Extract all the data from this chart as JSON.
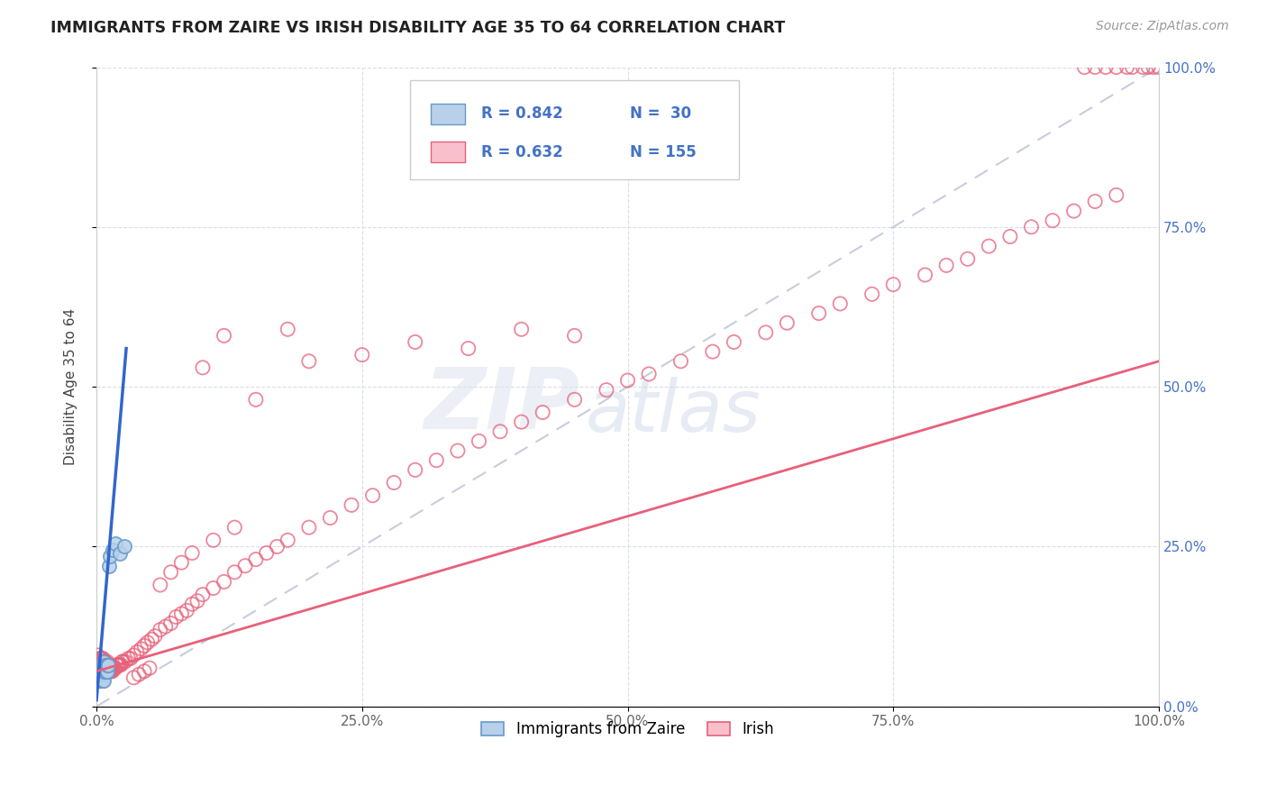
{
  "title": "IMMIGRANTS FROM ZAIRE VS IRISH DISABILITY AGE 35 TO 64 CORRELATION CHART",
  "source": "Source: ZipAtlas.com",
  "ylabel": "Disability Age 35 to 64",
  "xlim": [
    0,
    1.0
  ],
  "ylim": [
    0,
    1.0
  ],
  "x_tick_labels": [
    "0.0%",
    "25.0%",
    "50.0%",
    "75.0%",
    "100.0%"
  ],
  "x_tick_vals": [
    0.0,
    0.25,
    0.5,
    0.75,
    1.0
  ],
  "right_y_tick_labels": [
    "0.0%",
    "25.0%",
    "50.0%",
    "75.0%",
    "100.0%"
  ],
  "right_y_tick_vals": [
    0.0,
    0.25,
    0.5,
    0.75,
    1.0
  ],
  "blue_R": 0.842,
  "blue_N": 30,
  "pink_R": 0.632,
  "pink_N": 155,
  "blue_fill_color": "#b8d0ea",
  "pink_fill_color": "#f9c0cc",
  "blue_line_color": "#3366cc",
  "pink_line_color": "#e8607a",
  "blue_edge_color": "#6699cc",
  "pink_edge_color": "#e8607a",
  "diag_line_color": "#c0c8d8",
  "grid_color": "#d8dde8",
  "background_color": "#ffffff",
  "watermark_zip": "ZIP",
  "watermark_atlas": "atlas",
  "legend_label_blue": "Immigrants from Zaire",
  "legend_label_pink": "Irish",
  "blue_points_x": [
    0.002,
    0.003,
    0.003,
    0.004,
    0.004,
    0.004,
    0.005,
    0.005,
    0.005,
    0.006,
    0.006,
    0.006,
    0.006,
    0.007,
    0.007,
    0.007,
    0.007,
    0.008,
    0.008,
    0.009,
    0.009,
    0.01,
    0.01,
    0.011,
    0.012,
    0.013,
    0.015,
    0.018,
    0.022,
    0.026
  ],
  "blue_points_y": [
    0.04,
    0.05,
    0.06,
    0.04,
    0.05,
    0.06,
    0.04,
    0.055,
    0.065,
    0.04,
    0.05,
    0.06,
    0.065,
    0.04,
    0.055,
    0.065,
    0.07,
    0.055,
    0.065,
    0.055,
    0.065,
    0.055,
    0.065,
    0.065,
    0.22,
    0.235,
    0.245,
    0.255,
    0.24,
    0.25
  ],
  "pink_points_x": [
    0.001,
    0.001,
    0.002,
    0.002,
    0.003,
    0.003,
    0.003,
    0.004,
    0.004,
    0.004,
    0.004,
    0.005,
    0.005,
    0.005,
    0.005,
    0.005,
    0.006,
    0.006,
    0.006,
    0.006,
    0.006,
    0.007,
    0.007,
    0.007,
    0.007,
    0.008,
    0.008,
    0.008,
    0.008,
    0.009,
    0.009,
    0.009,
    0.01,
    0.01,
    0.01,
    0.01,
    0.011,
    0.011,
    0.011,
    0.012,
    0.012,
    0.012,
    0.013,
    0.013,
    0.014,
    0.014,
    0.015,
    0.015,
    0.016,
    0.017,
    0.018,
    0.019,
    0.02,
    0.021,
    0.022,
    0.023,
    0.024,
    0.025,
    0.027,
    0.03,
    0.032,
    0.035,
    0.038,
    0.042,
    0.045,
    0.048,
    0.052,
    0.055,
    0.06,
    0.065,
    0.07,
    0.075,
    0.08,
    0.085,
    0.09,
    0.095,
    0.1,
    0.11,
    0.12,
    0.13,
    0.14,
    0.15,
    0.16,
    0.17,
    0.18,
    0.2,
    0.22,
    0.24,
    0.26,
    0.28,
    0.3,
    0.32,
    0.34,
    0.36,
    0.38,
    0.4,
    0.42,
    0.45,
    0.48,
    0.5,
    0.52,
    0.55,
    0.58,
    0.6,
    0.63,
    0.65,
    0.68,
    0.7,
    0.73,
    0.75,
    0.78,
    0.8,
    0.82,
    0.84,
    0.86,
    0.88,
    0.9,
    0.92,
    0.94,
    0.96,
    0.975,
    0.985,
    0.99,
    0.995,
    1.0,
    0.97,
    0.96,
    0.95,
    0.94,
    0.93,
    0.1,
    0.15,
    0.2,
    0.25,
    0.3,
    0.35,
    0.4,
    0.45,
    0.12,
    0.18,
    0.06,
    0.07,
    0.08,
    0.09,
    0.11,
    0.13,
    0.05,
    0.045,
    0.04,
    0.035
  ],
  "pink_points_y": [
    0.07,
    0.08,
    0.06,
    0.07,
    0.055,
    0.065,
    0.075,
    0.055,
    0.06,
    0.065,
    0.075,
    0.055,
    0.06,
    0.065,
    0.07,
    0.075,
    0.055,
    0.06,
    0.065,
    0.07,
    0.075,
    0.055,
    0.06,
    0.065,
    0.07,
    0.055,
    0.06,
    0.065,
    0.07,
    0.055,
    0.06,
    0.065,
    0.055,
    0.06,
    0.065,
    0.07,
    0.055,
    0.06,
    0.065,
    0.055,
    0.06,
    0.065,
    0.055,
    0.06,
    0.055,
    0.06,
    0.055,
    0.06,
    0.06,
    0.06,
    0.06,
    0.065,
    0.065,
    0.065,
    0.065,
    0.065,
    0.07,
    0.07,
    0.07,
    0.075,
    0.075,
    0.08,
    0.085,
    0.09,
    0.095,
    0.1,
    0.105,
    0.11,
    0.12,
    0.125,
    0.13,
    0.14,
    0.145,
    0.15,
    0.16,
    0.165,
    0.175,
    0.185,
    0.195,
    0.21,
    0.22,
    0.23,
    0.24,
    0.25,
    0.26,
    0.28,
    0.295,
    0.315,
    0.33,
    0.35,
    0.37,
    0.385,
    0.4,
    0.415,
    0.43,
    0.445,
    0.46,
    0.48,
    0.495,
    0.51,
    0.52,
    0.54,
    0.555,
    0.57,
    0.585,
    0.6,
    0.615,
    0.63,
    0.645,
    0.66,
    0.675,
    0.69,
    0.7,
    0.72,
    0.735,
    0.75,
    0.76,
    0.775,
    0.79,
    0.8,
    1.0,
    1.0,
    1.0,
    1.0,
    1.0,
    1.0,
    1.0,
    1.0,
    1.0,
    1.0,
    0.53,
    0.48,
    0.54,
    0.55,
    0.57,
    0.56,
    0.59,
    0.58,
    0.58,
    0.59,
    0.19,
    0.21,
    0.225,
    0.24,
    0.26,
    0.28,
    0.06,
    0.055,
    0.05,
    0.045
  ],
  "blue_line_x": [
    0.0,
    0.028
  ],
  "blue_line_y": [
    0.01,
    0.56
  ],
  "pink_line_x": [
    0.0,
    1.0
  ],
  "pink_line_y": [
    0.055,
    0.54
  ],
  "diag_line_x": [
    0.0,
    1.0
  ],
  "diag_line_y": [
    0.0,
    1.0
  ]
}
